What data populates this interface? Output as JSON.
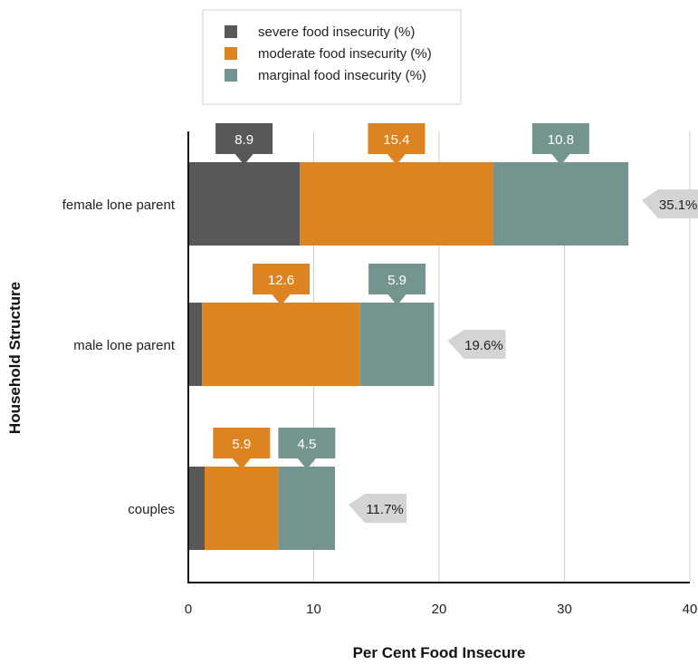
{
  "chart_data": {
    "type": "bar",
    "orientation": "horizontal",
    "stacked": true,
    "title": "",
    "xlabel": "Per Cent Food Insecure",
    "ylabel": "Household Structure",
    "xlim": [
      0,
      40
    ],
    "x_ticks": [
      0,
      10,
      20,
      30,
      40
    ],
    "grid": "vertical",
    "legend_position": "top",
    "categories": [
      "female lone parent",
      "male lone parent",
      "couples"
    ],
    "series": [
      {
        "name": "severe food insecurity (%)",
        "color": "#58585a",
        "values": [
          8.9,
          1.1,
          1.3
        ],
        "labels": [
          "8.9",
          "",
          ""
        ]
      },
      {
        "name": "moderate food insecurity (%)",
        "color": "#dc8421",
        "values": [
          15.4,
          12.6,
          5.9
        ],
        "labels": [
          "15.4",
          "12.6",
          "5.9"
        ]
      },
      {
        "name": "marginal food insecurity (%)",
        "color": "#74958f",
        "values": [
          10.8,
          5.9,
          4.5
        ],
        "labels": [
          "10.8",
          "5.9",
          "4.5"
        ]
      }
    ],
    "totals": [
      "35.1%",
      "19.6%",
      "11.7%"
    ],
    "total_label_color": "#d4d4d4"
  }
}
